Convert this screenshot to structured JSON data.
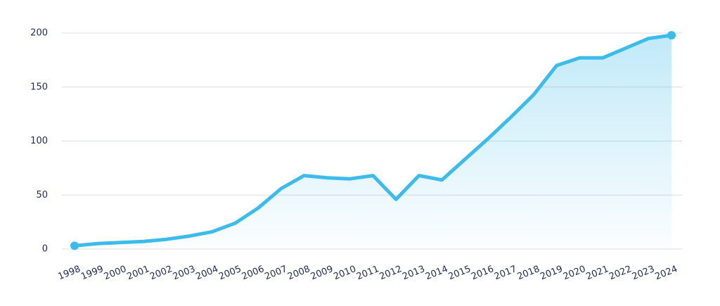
{
  "chart_data": {
    "type": "line",
    "categories": [
      "1998",
      "1999",
      "2000",
      "2001",
      "2002",
      "2003",
      "2004",
      "2005",
      "2006",
      "2007",
      "2008",
      "2009",
      "2010",
      "2011",
      "2012",
      "2013",
      "2014",
      "2015",
      "2016",
      "2017",
      "2018",
      "2019",
      "2020",
      "2021",
      "2022",
      "2023",
      "2024"
    ],
    "values": [
      3,
      5,
      6,
      7,
      9,
      12,
      16,
      24,
      38,
      56,
      68,
      66,
      65,
      68,
      46,
      68,
      64,
      83,
      102,
      122,
      143,
      170,
      177,
      177,
      186,
      195,
      198
    ],
    "color": "#3dbbea",
    "ylim": [
      0,
      200
    ],
    "yticks": [
      0,
      50,
      100,
      150,
      200
    ],
    "grid": true
  }
}
